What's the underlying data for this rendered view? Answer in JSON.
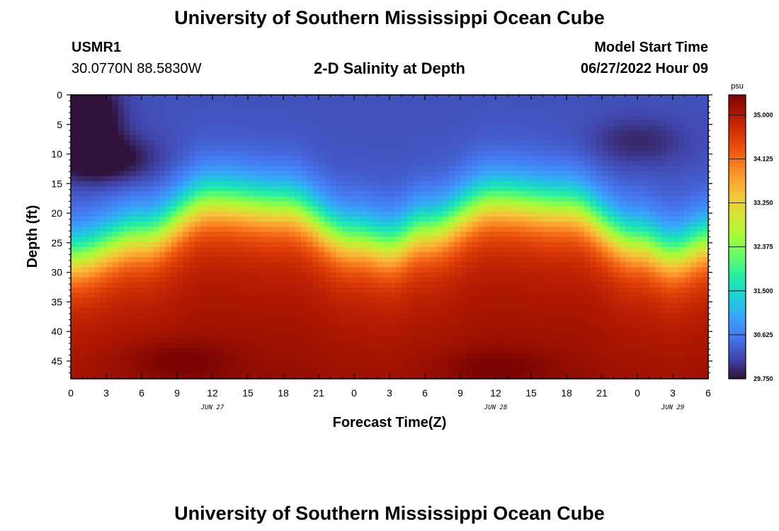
{
  "header": {
    "title": "University of Southern Mississippi Ocean Cube",
    "station_id": "USMR1",
    "coordinates": "30.0770N  88.5830W",
    "plot_title": "2-D Salinity at Depth",
    "model_start_label": "Model Start Time",
    "model_start_value": "06/27/2022 Hour 09"
  },
  "footer": {
    "title": "University of Southern Mississippi Ocean Cube"
  },
  "chart_data": {
    "type": "heatmap",
    "xlabel": "Forecast Time(Z)",
    "ylabel": "Depth (ft)",
    "x_range_hours": [
      0,
      54
    ],
    "y_range_ft": [
      0,
      48
    ],
    "x_tick_labels": [
      "0",
      "3",
      "6",
      "9",
      "12",
      "15",
      "18",
      "21",
      "0",
      "3",
      "6",
      "9",
      "12",
      "15",
      "18",
      "21",
      "0",
      "3",
      "6"
    ],
    "y_tick_labels": [
      "0",
      "5",
      "10",
      "15",
      "20",
      "25",
      "30",
      "35",
      "40",
      "45"
    ],
    "date_labels": [
      {
        "text": "JUN 27",
        "hour": 12
      },
      {
        "text": "JUN 28",
        "hour": 36
      },
      {
        "text": "JUN 29",
        "hour": 51
      }
    ],
    "colorbar": {
      "unit": "psu",
      "min": 29.75,
      "max": 35.4,
      "tick_labels": [
        "35.000",
        "34.125",
        "33.250",
        "32.375",
        "31.500",
        "30.625",
        "29.750"
      ]
    },
    "colors": [
      "#30123b",
      "#4145ab",
      "#4675ed",
      "#39a2fc",
      "#1bcfd4",
      "#24eca6",
      "#61fc6c",
      "#a4fc3b",
      "#d1e834",
      "#f3c63a",
      "#fe9b2d",
      "#f36315",
      "#d93806",
      "#b11901",
      "#7a0402"
    ],
    "interface_depth_ft": [
      {
        "hour": 0,
        "depth": 27.5
      },
      {
        "hour": 6,
        "depth": 24
      },
      {
        "hour": 12,
        "depth": 18
      },
      {
        "hour": 18,
        "depth": 19
      },
      {
        "hour": 24,
        "depth": 24.5
      },
      {
        "hour": 27,
        "depth": 25.5
      },
      {
        "hour": 30,
        "depth": 23
      },
      {
        "hour": 36,
        "depth": 18
      },
      {
        "hour": 42,
        "depth": 19
      },
      {
        "hour": 48,
        "depth": 25
      },
      {
        "hour": 51,
        "depth": 27
      },
      {
        "hour": 54,
        "depth": 25
      }
    ]
  }
}
